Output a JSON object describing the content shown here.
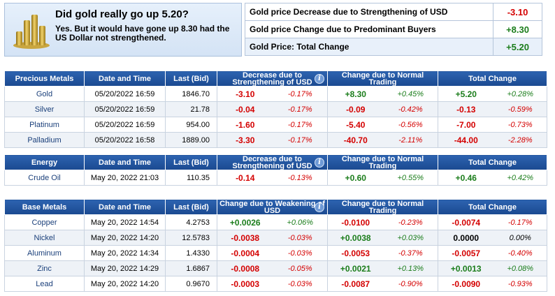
{
  "summary": {
    "title": "Did gold really go up 5.20?",
    "text": "Yes. But it would have gone up 8.30 had the US Dollar not strengthened.",
    "rows": [
      {
        "label": "Gold price Decrease due to Strengthening of USD",
        "value": "-3.10",
        "sign": "neg"
      },
      {
        "label": "Gold price Change due to Predominant Buyers",
        "value": "+8.30",
        "sign": "pos"
      },
      {
        "label": "Gold Price: Total Change",
        "value": "+5.20",
        "sign": "pos"
      }
    ]
  },
  "precious": {
    "headers": {
      "name": "Precious Metals",
      "date": "Date and Time",
      "bid": "Last (Bid)",
      "usd": "Decrease due to Strengthening of USD",
      "trading": "Change due to Normal Trading",
      "total": "Total Change"
    },
    "rows": [
      {
        "name": "Gold",
        "date": "05/20/2022 16:59",
        "bid": "1846.70",
        "usd": "-3.10",
        "usd_pct": "-0.17%",
        "trd": "+8.30",
        "trd_pct": "+0.45%",
        "tot": "+5.20",
        "tot_pct": "+0.28%"
      },
      {
        "name": "Silver",
        "date": "05/20/2022 16:59",
        "bid": "21.78",
        "usd": "-0.04",
        "usd_pct": "-0.17%",
        "trd": "-0.09",
        "trd_pct": "-0.42%",
        "tot": "-0.13",
        "tot_pct": "-0.59%"
      },
      {
        "name": "Platinum",
        "date": "05/20/2022 16:59",
        "bid": "954.00",
        "usd": "-1.60",
        "usd_pct": "-0.17%",
        "trd": "-5.40",
        "trd_pct": "-0.56%",
        "tot": "-7.00",
        "tot_pct": "-0.73%"
      },
      {
        "name": "Palladium",
        "date": "05/20/2022 16:58",
        "bid": "1889.00",
        "usd": "-3.30",
        "usd_pct": "-0.17%",
        "trd": "-40.70",
        "trd_pct": "-2.11%",
        "tot": "-44.00",
        "tot_pct": "-2.28%"
      }
    ]
  },
  "energy": {
    "headers": {
      "name": "Energy",
      "date": "Date and Time",
      "bid": "Last (Bid)",
      "usd": "Decrease due to Strengthening of USD",
      "trading": "Change due to Normal Trading",
      "total": "Total Change"
    },
    "rows": [
      {
        "name": "Crude Oil",
        "date": "May 20, 2022 21:03",
        "bid": "110.35",
        "usd": "-0.14",
        "usd_pct": "-0.13%",
        "trd": "+0.60",
        "trd_pct": "+0.55%",
        "tot": "+0.46",
        "tot_pct": "+0.42%"
      }
    ]
  },
  "base": {
    "headers": {
      "name": "Base Metals",
      "date": "Date and Time",
      "bid": "Last (Bid)",
      "usd": "Change due to Weakening of USD",
      "trading": "Change due to Normal Trading",
      "total": "Total Change"
    },
    "rows": [
      {
        "name": "Copper",
        "date": "May 20, 2022 14:54",
        "bid": "4.2753",
        "usd": "+0.0026",
        "usd_pct": "+0.06%",
        "trd": "-0.0100",
        "trd_pct": "-0.23%",
        "tot": "-0.0074",
        "tot_pct": "-0.17%"
      },
      {
        "name": "Nickel",
        "date": "May 20, 2022 14:20",
        "bid": "12.5783",
        "usd": "-0.0038",
        "usd_pct": "-0.03%",
        "trd": "+0.0038",
        "trd_pct": "+0.03%",
        "tot": "0.0000",
        "tot_pct": "0.00%"
      },
      {
        "name": "Aluminum",
        "date": "May 20, 2022 14:34",
        "bid": "1.4330",
        "usd": "-0.0004",
        "usd_pct": "-0.03%",
        "trd": "-0.0053",
        "trd_pct": "-0.37%",
        "tot": "-0.0057",
        "tot_pct": "-0.40%"
      },
      {
        "name": "Zinc",
        "date": "May 20, 2022 14:29",
        "bid": "1.6867",
        "usd": "-0.0008",
        "usd_pct": "-0.05%",
        "trd": "+0.0021",
        "trd_pct": "+0.13%",
        "tot": "+0.0013",
        "tot_pct": "+0.08%"
      },
      {
        "name": "Lead",
        "date": "May 20, 2022 14:20",
        "bid": "0.9670",
        "usd": "-0.0003",
        "usd_pct": "-0.03%",
        "trd": "-0.0087",
        "trd_pct": "-0.90%",
        "tot": "-0.0090",
        "tot_pct": "-0.93%"
      }
    ]
  },
  "icons": {
    "info": "info-icon",
    "gold": "gold-bars-icon"
  },
  "colors": {
    "negative": "#d40000",
    "positive": "#1b7d1b",
    "header": "#1f4f98"
  }
}
